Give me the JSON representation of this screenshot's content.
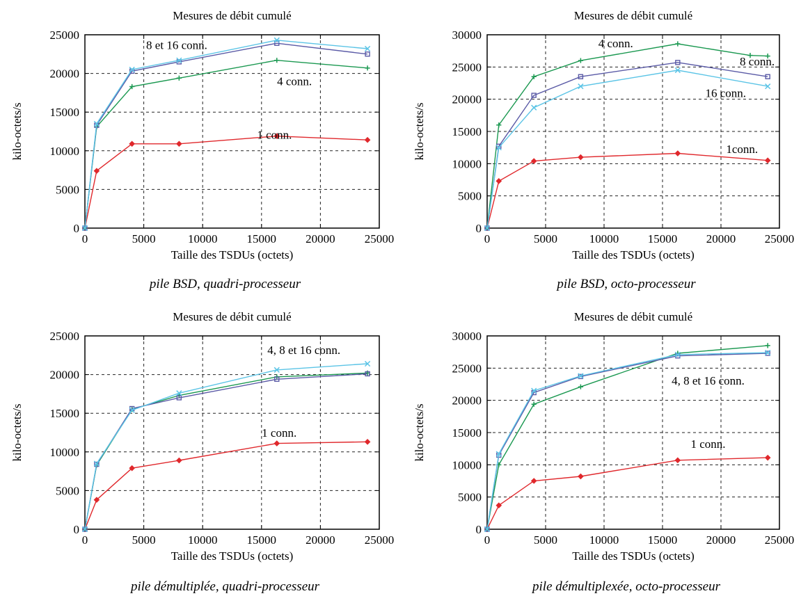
{
  "chart_data": [
    {
      "type": "line",
      "title": "Mesures de débit cumulé",
      "xlabel": "Taille des TSDUs (octets)",
      "ylabel": "kilo-octets/s",
      "caption": "pile BSD, quadri-processeur",
      "xlim": [
        0,
        25000
      ],
      "ylim": [
        0,
        25000
      ],
      "xticks": [
        "0",
        "5000",
        "10000",
        "15000",
        "20000",
        "25000"
      ],
      "yticks": [
        "0",
        "5000",
        "10000",
        "15000",
        "20000",
        "25000"
      ],
      "grid": true,
      "annotations": [
        {
          "text": "8 et 16 conn.",
          "x": 7800,
          "y": 23700
        },
        {
          "text": "4 conn.",
          "x": 17800,
          "y": 19000
        },
        {
          "text": "1 conn.",
          "x": 16100,
          "y": 12100
        }
      ],
      "series": [
        {
          "color": "#e0282c",
          "marker": "diamond",
          "x": [
            0,
            1000,
            4000,
            8000,
            16300,
            24000
          ],
          "y": [
            0,
            7400,
            10900,
            10900,
            11900,
            11400
          ]
        },
        {
          "color": "#1a9850",
          "marker": "plus",
          "x": [
            0,
            1000,
            4000,
            8000,
            16300,
            24000
          ],
          "y": [
            0,
            13100,
            18300,
            19400,
            21700,
            20700
          ]
        },
        {
          "color": "#5a5aa6",
          "marker": "square",
          "x": [
            0,
            1000,
            4000,
            8000,
            16300,
            24000
          ],
          "y": [
            0,
            13300,
            20300,
            21500,
            23900,
            22500
          ]
        },
        {
          "color": "#5bc4e6",
          "marker": "x",
          "x": [
            0,
            1000,
            4000,
            8000,
            16300,
            24000
          ],
          "y": [
            0,
            13500,
            20500,
            21700,
            24300,
            23200
          ]
        }
      ]
    },
    {
      "type": "line",
      "title": "Mesures de débit cumulé",
      "xlabel": "Taille des TSDUs (octets)",
      "ylabel": "kilo-octets/s",
      "caption": "pile BSD, octo-processeur",
      "xlim": [
        0,
        25000
      ],
      "ylim": [
        0,
        30000
      ],
      "xticks": [
        "0",
        "5000",
        "10000",
        "15000",
        "20000",
        "25000"
      ],
      "yticks": [
        "0",
        "5000",
        "10000",
        "15000",
        "20000",
        "25000",
        "30000"
      ],
      "grid": true,
      "annotations": [
        {
          "text": "4 conn.",
          "x": 11000,
          "y": 28700
        },
        {
          "text": "8 conn.",
          "x": 23100,
          "y": 25900
        },
        {
          "text": "16 conn.",
          "x": 20400,
          "y": 21000
        },
        {
          "text": "1conn.",
          "x": 21800,
          "y": 12300
        }
      ],
      "series": [
        {
          "color": "#e0282c",
          "marker": "diamond",
          "x": [
            0,
            1000,
            4000,
            8000,
            16300,
            24000
          ],
          "y": [
            0,
            7300,
            10400,
            11000,
            11600,
            10500
          ]
        },
        {
          "color": "#1a9850",
          "marker": "plus",
          "x": [
            0,
            1000,
            4000,
            8000,
            16300,
            22500,
            24000
          ],
          "y": [
            0,
            16000,
            23500,
            26000,
            28600,
            26800,
            26700
          ]
        },
        {
          "color": "#5a5aa6",
          "marker": "square",
          "x": [
            0,
            1000,
            4000,
            8000,
            16300,
            24000
          ],
          "y": [
            0,
            12700,
            20600,
            23500,
            25700,
            23500
          ]
        },
        {
          "color": "#5bc4e6",
          "marker": "x",
          "x": [
            0,
            1000,
            4000,
            8000,
            16300,
            24000
          ],
          "y": [
            0,
            12500,
            18700,
            22000,
            24500,
            22000
          ]
        }
      ]
    },
    {
      "type": "line",
      "title": "Mesures de débit cumulé",
      "xlabel": "Taille des TSDUs (octets)",
      "ylabel": "kilo-octets/s",
      "caption": "pile démultiplée, quadri-processeur",
      "xlim": [
        0,
        25000
      ],
      "ylim": [
        0,
        25000
      ],
      "xticks": [
        "0",
        "5000",
        "10000",
        "15000",
        "20000",
        "25000"
      ],
      "yticks": [
        "0",
        "5000",
        "10000",
        "15000",
        "20000",
        "25000"
      ],
      "grid": true,
      "annotations": [
        {
          "text": "4, 8 et 16 conn.",
          "x": 18600,
          "y": 23200
        },
        {
          "text": "1 conn.",
          "x": 16500,
          "y": 12500
        }
      ],
      "series": [
        {
          "color": "#e0282c",
          "marker": "diamond",
          "x": [
            0,
            1000,
            4000,
            8000,
            16300,
            24000
          ],
          "y": [
            0,
            3800,
            7900,
            8900,
            11100,
            11300
          ]
        },
        {
          "color": "#1a9850",
          "marker": "plus",
          "x": [
            0,
            1000,
            4000,
            8000,
            16300,
            24000
          ],
          "y": [
            0,
            8300,
            15500,
            17300,
            19700,
            20200
          ]
        },
        {
          "color": "#5a5aa6",
          "marker": "square",
          "x": [
            0,
            1000,
            4000,
            8000,
            16300,
            24000
          ],
          "y": [
            0,
            8400,
            15600,
            17000,
            19400,
            20100
          ]
        },
        {
          "color": "#5bc4e6",
          "marker": "x",
          "x": [
            0,
            1000,
            4000,
            8000,
            16300,
            24000
          ],
          "y": [
            0,
            8500,
            15400,
            17600,
            20600,
            21400
          ]
        }
      ]
    },
    {
      "type": "line",
      "title": "Mesures de débit cumulé",
      "xlabel": "Taille des TSDUs (octets)",
      "ylabel": "kilo-octets/s",
      "caption": "pile démultiplexée, octo-processeur",
      "xlim": [
        0,
        25000
      ],
      "ylim": [
        0,
        30000
      ],
      "xticks": [
        "0",
        "5000",
        "10000",
        "15000",
        "20000",
        "25000"
      ],
      "yticks": [
        "0",
        "5000",
        "10000",
        "15000",
        "20000",
        "25000",
        "30000"
      ],
      "grid": true,
      "annotations": [
        {
          "text": "4, 8 et 16 conn.",
          "x": 18900,
          "y": 23100
        },
        {
          "text": "1 conn.",
          "x": 18900,
          "y": 13300
        }
      ],
      "series": [
        {
          "color": "#e0282c",
          "marker": "diamond",
          "x": [
            0,
            1000,
            4000,
            8000,
            16300,
            24000
          ],
          "y": [
            0,
            3700,
            7500,
            8200,
            10700,
            11100
          ]
        },
        {
          "color": "#1a9850",
          "marker": "plus",
          "x": [
            0,
            1000,
            4000,
            8000,
            16300,
            24000
          ],
          "y": [
            0,
            10000,
            19400,
            22100,
            27300,
            28500
          ]
        },
        {
          "color": "#5a5aa6",
          "marker": "square",
          "x": [
            0,
            1000,
            4000,
            8000,
            16300,
            24000
          ],
          "y": [
            0,
            11500,
            21200,
            23700,
            26900,
            27300
          ]
        },
        {
          "color": "#5bc4e6",
          "marker": "x",
          "x": [
            0,
            1000,
            4000,
            8000,
            16300,
            24000
          ],
          "y": [
            0,
            11700,
            21500,
            23800,
            27100,
            27400
          ]
        }
      ]
    }
  ]
}
